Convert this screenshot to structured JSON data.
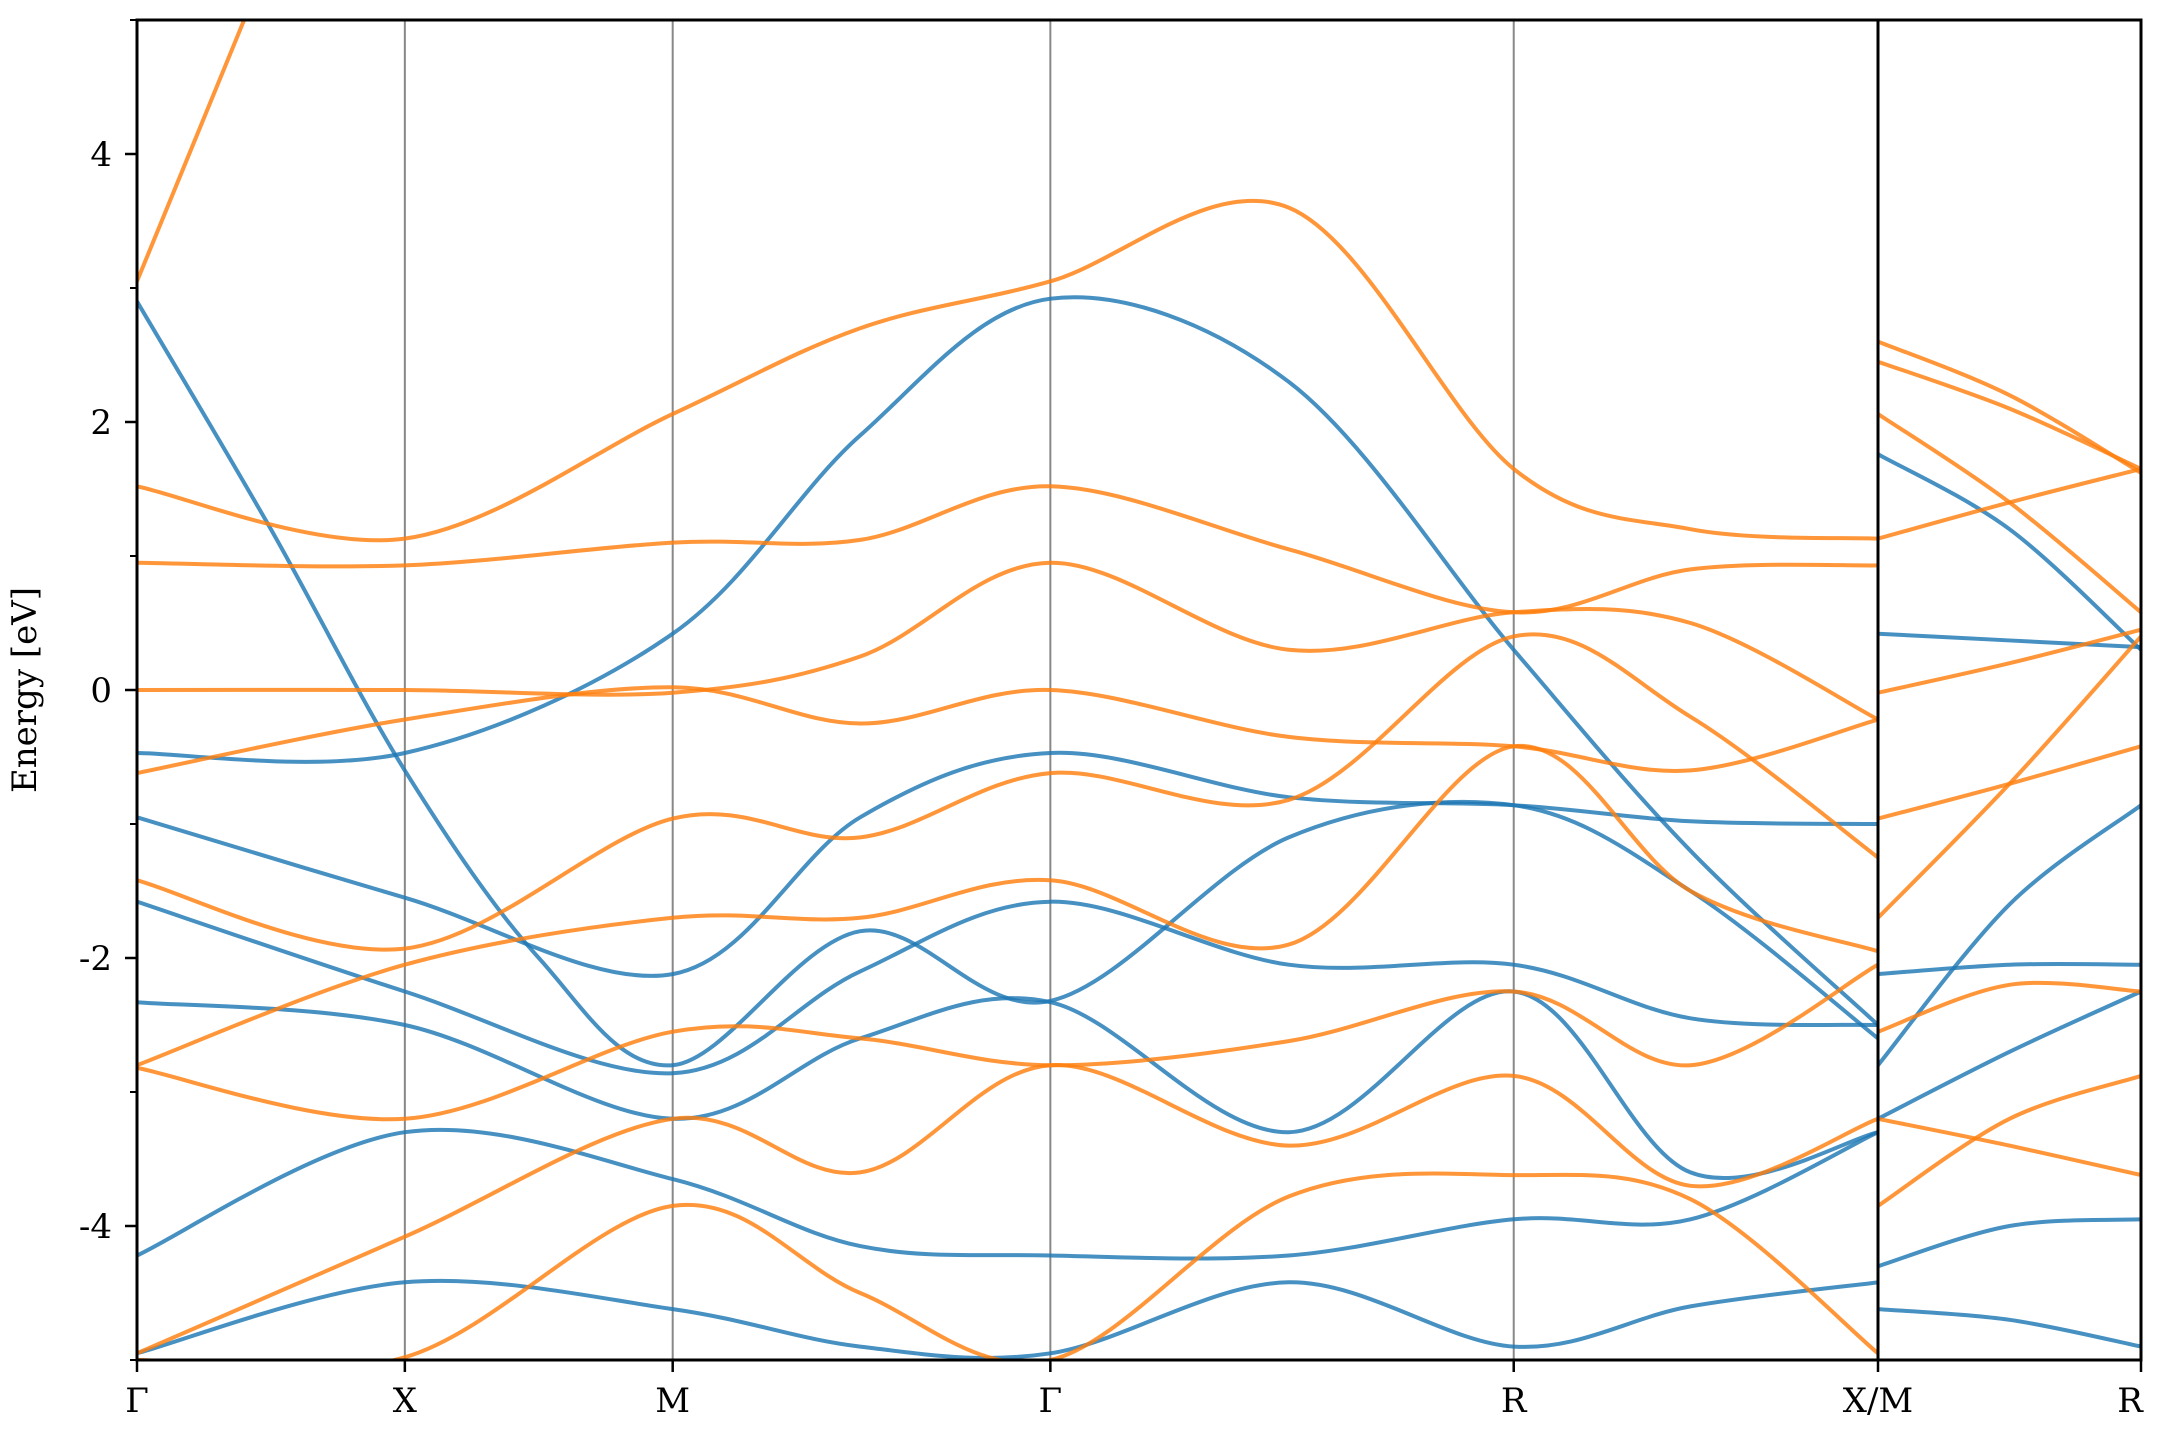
{
  "chart_data": {
    "type": "line",
    "title": "",
    "xlabel": "",
    "ylabel": "Energy [eV]",
    "ylim": [
      -5,
      5
    ],
    "yticks": [
      -4,
      -2,
      0,
      2,
      4
    ],
    "grid": false,
    "legend": "none",
    "panels": [
      {
        "xlim": [
          0,
          7.62
        ],
        "kpoints": [
          {
            "label": "Γ",
            "x": 0
          },
          {
            "label": "X",
            "x": 1.0
          },
          {
            "label": "M",
            "x": 2.0
          },
          {
            "label": "Γ",
            "x": 3.41
          },
          {
            "label": "R",
            "x": 5.14
          },
          {
            "label": "X/M",
            "x": 6.5
          }
        ]
      },
      {
        "xlim": [
          6.5,
          7.5
        ],
        "kpoints": [
          {
            "label": "R",
            "x": 7.5
          }
        ]
      }
    ],
    "series": [
      {
        "color": "#1f77b4",
        "bands": [
          [
            [
              0,
              2.9
            ],
            [
              0.5,
              1.2
            ],
            [
              1.0,
              -0.6
            ],
            [
              1.5,
              -2.0
            ],
            [
              2.0,
              -2.8
            ],
            [
              2.7,
              -1.8
            ],
            [
              3.41,
              -2.32
            ],
            [
              4.3,
              -1.1
            ],
            [
              5.14,
              -0.86
            ],
            [
              5.8,
              -1.5
            ],
            [
              6.5,
              -2.6
            ]
          ],
          [
            [
              0,
              -0.47
            ],
            [
              1.0,
              -0.47
            ],
            [
              2.0,
              0.42
            ],
            [
              2.7,
              1.9
            ],
            [
              3.41,
              2.92
            ],
            [
              4.3,
              2.3
            ],
            [
              5.14,
              0.3
            ],
            [
              5.8,
              -1.2
            ],
            [
              6.5,
              -2.5
            ]
          ],
          [
            [
              0,
              -0.95
            ],
            [
              1.0,
              -1.55
            ],
            [
              2.0,
              -2.12
            ],
            [
              2.7,
              -0.95
            ],
            [
              3.41,
              -0.47
            ],
            [
              4.3,
              -0.8
            ],
            [
              5.14,
              -0.86
            ],
            [
              5.8,
              -0.98
            ],
            [
              6.5,
              -1.0
            ]
          ],
          [
            [
              0,
              -1.58
            ],
            [
              1.0,
              -2.25
            ],
            [
              2.0,
              -2.86
            ],
            [
              2.7,
              -2.1
            ],
            [
              3.41,
              -1.58
            ],
            [
              4.3,
              -2.05
            ],
            [
              5.14,
              -2.05
            ],
            [
              5.8,
              -2.45
            ],
            [
              6.5,
              -2.5
            ]
          ],
          [
            [
              0,
              -2.33
            ],
            [
              1.0,
              -2.5
            ],
            [
              2.0,
              -3.2
            ],
            [
              2.7,
              -2.6
            ],
            [
              3.41,
              -2.33
            ],
            [
              4.3,
              -3.3
            ],
            [
              5.14,
              -2.25
            ],
            [
              5.8,
              -3.6
            ],
            [
              6.5,
              -3.3
            ]
          ],
          [
            [
              0,
              -4.22
            ],
            [
              1.0,
              -3.3
            ],
            [
              2.0,
              -3.65
            ],
            [
              2.7,
              -4.15
            ],
            [
              3.41,
              -4.22
            ],
            [
              4.3,
              -4.22
            ],
            [
              5.14,
              -3.95
            ],
            [
              5.8,
              -3.95
            ],
            [
              6.5,
              -3.3
            ]
          ],
          [
            [
              0,
              -4.95
            ],
            [
              1.0,
              -4.42
            ],
            [
              2.0,
              -4.62
            ],
            [
              2.7,
              -4.9
            ],
            [
              3.41,
              -4.95
            ],
            [
              4.3,
              -4.42
            ],
            [
              5.14,
              -4.9
            ],
            [
              5.8,
              -4.6
            ],
            [
              6.5,
              -4.42
            ]
          ]
        ]
      },
      {
        "color": "#ff7f0e",
        "bands": [
          [
            [
              0,
              3.05
            ],
            [
              0.4,
              5.0
            ]
          ],
          [
            [
              0,
              1.52
            ],
            [
              1.0,
              1.13
            ],
            [
              2.0,
              2.06
            ],
            [
              2.7,
              2.7
            ],
            [
              3.41,
              3.05
            ],
            [
              4.3,
              3.6
            ],
            [
              5.14,
              1.65
            ],
            [
              5.8,
              1.2
            ],
            [
              6.5,
              1.13
            ]
          ],
          [
            [
              0,
              0.95
            ],
            [
              1.0,
              0.93
            ],
            [
              2.0,
              1.1
            ],
            [
              2.7,
              1.12
            ],
            [
              3.41,
              1.52
            ],
            [
              4.3,
              1.05
            ],
            [
              5.14,
              0.58
            ],
            [
              5.8,
              0.9
            ],
            [
              6.5,
              0.93
            ]
          ],
          [
            [
              0,
              0.0
            ],
            [
              1.0,
              0.0
            ],
            [
              2.0,
              -0.02
            ],
            [
              2.7,
              0.25
            ],
            [
              3.41,
              0.95
            ],
            [
              4.3,
              0.3
            ],
            [
              5.14,
              0.58
            ],
            [
              5.8,
              0.5
            ],
            [
              6.5,
              -0.22
            ]
          ],
          [
            [
              0,
              -0.62
            ],
            [
              1.0,
              -0.22
            ],
            [
              2.0,
              0.02
            ],
            [
              2.7,
              -0.25
            ],
            [
              3.41,
              0.0
            ],
            [
              4.3,
              -0.35
            ],
            [
              5.14,
              -0.42
            ],
            [
              5.8,
              -0.6
            ],
            [
              6.5,
              -0.22
            ]
          ],
          [
            [
              0,
              -1.42
            ],
            [
              1.0,
              -1.93
            ],
            [
              2.0,
              -0.96
            ],
            [
              2.7,
              -1.1
            ],
            [
              3.41,
              -0.62
            ],
            [
              4.3,
              -0.82
            ],
            [
              5.14,
              0.4
            ],
            [
              5.8,
              -0.2
            ],
            [
              6.5,
              -1.25
            ]
          ],
          [
            [
              0,
              -2.8
            ],
            [
              1.0,
              -2.05
            ],
            [
              2.0,
              -1.7
            ],
            [
              2.7,
              -1.7
            ],
            [
              3.41,
              -1.42
            ],
            [
              4.3,
              -1.9
            ],
            [
              5.14,
              -0.42
            ],
            [
              5.8,
              -1.5
            ],
            [
              6.5,
              -1.95
            ]
          ],
          [
            [
              0,
              -2.82
            ],
            [
              1.0,
              -3.2
            ],
            [
              2.0,
              -2.55
            ],
            [
              2.7,
              -2.6
            ],
            [
              3.41,
              -2.8
            ],
            [
              4.3,
              -2.62
            ],
            [
              5.14,
              -2.25
            ],
            [
              5.8,
              -2.8
            ],
            [
              6.5,
              -2.05
            ]
          ],
          [
            [
              0,
              -4.95
            ],
            [
              1.0,
              -4.08
            ],
            [
              2.0,
              -3.2
            ],
            [
              2.7,
              -3.6
            ],
            [
              3.41,
              -2.8
            ],
            [
              4.3,
              -3.4
            ],
            [
              5.14,
              -2.88
            ],
            [
              5.8,
              -3.7
            ],
            [
              6.5,
              -3.2
            ]
          ],
          [
            [
              0,
              -5.0
            ],
            [
              1.0,
              -4.98
            ],
            [
              2.0,
              -3.85
            ],
            [
              2.7,
              -4.5
            ],
            [
              3.41,
              -5.0
            ],
            [
              4.3,
              -3.78
            ],
            [
              5.14,
              -3.62
            ],
            [
              5.8,
              -3.8
            ],
            [
              6.5,
              -4.95
            ]
          ]
        ]
      }
    ],
    "right_panel_series": [
      {
        "color": "#1f77b4",
        "bands": [
          [
            [
              6.5,
              0.42
            ],
            [
              7.5,
              0.32
            ]
          ],
          [
            [
              6.5,
              1.76
            ],
            [
              7.0,
              1.2
            ],
            [
              7.5,
              0.3
            ]
          ],
          [
            [
              6.5,
              -2.12
            ],
            [
              7.0,
              -2.05
            ],
            [
              7.5,
              -2.05
            ]
          ],
          [
            [
              6.5,
              -2.8
            ],
            [
              7.0,
              -1.6
            ],
            [
              7.5,
              -0.86
            ]
          ],
          [
            [
              6.5,
              -3.2
            ],
            [
              7.0,
              -2.7
            ],
            [
              7.5,
              -2.25
            ]
          ],
          [
            [
              6.5,
              -4.62
            ],
            [
              7.0,
              -4.7
            ],
            [
              7.5,
              -4.9
            ]
          ],
          [
            [
              6.5,
              -4.3
            ],
            [
              7.0,
              -4.0
            ],
            [
              7.5,
              -3.95
            ]
          ]
        ]
      },
      {
        "color": "#ff7f0e",
        "bands": [
          [
            [
              6.5,
              2.6
            ],
            [
              7.0,
              2.2
            ],
            [
              7.5,
              1.62
            ]
          ],
          [
            [
              6.5,
              2.45
            ],
            [
              7.0,
              2.1
            ],
            [
              7.5,
              1.65
            ]
          ],
          [
            [
              6.5,
              2.06
            ],
            [
              7.0,
              1.4
            ],
            [
              7.5,
              0.58
            ]
          ],
          [
            [
              6.5,
              1.13
            ],
            [
              7.0,
              1.4
            ],
            [
              7.5,
              1.65
            ]
          ],
          [
            [
              6.5,
              -0.02
            ],
            [
              7.0,
              0.2
            ],
            [
              7.5,
              0.45
            ]
          ],
          [
            [
              6.5,
              -0.96
            ],
            [
              7.0,
              -0.7
            ],
            [
              7.5,
              -0.42
            ]
          ],
          [
            [
              6.5,
              -1.7
            ],
            [
              7.0,
              -0.7
            ],
            [
              7.5,
              0.4
            ]
          ],
          [
            [
              6.5,
              -2.55
            ],
            [
              7.0,
              -2.2
            ],
            [
              7.5,
              -2.25
            ]
          ],
          [
            [
              6.5,
              -3.85
            ],
            [
              7.0,
              -3.2
            ],
            [
              7.5,
              -2.88
            ]
          ],
          [
            [
              6.5,
              -3.2
            ],
            [
              7.0,
              -3.4
            ],
            [
              7.5,
              -3.62
            ]
          ]
        ]
      }
    ]
  }
}
